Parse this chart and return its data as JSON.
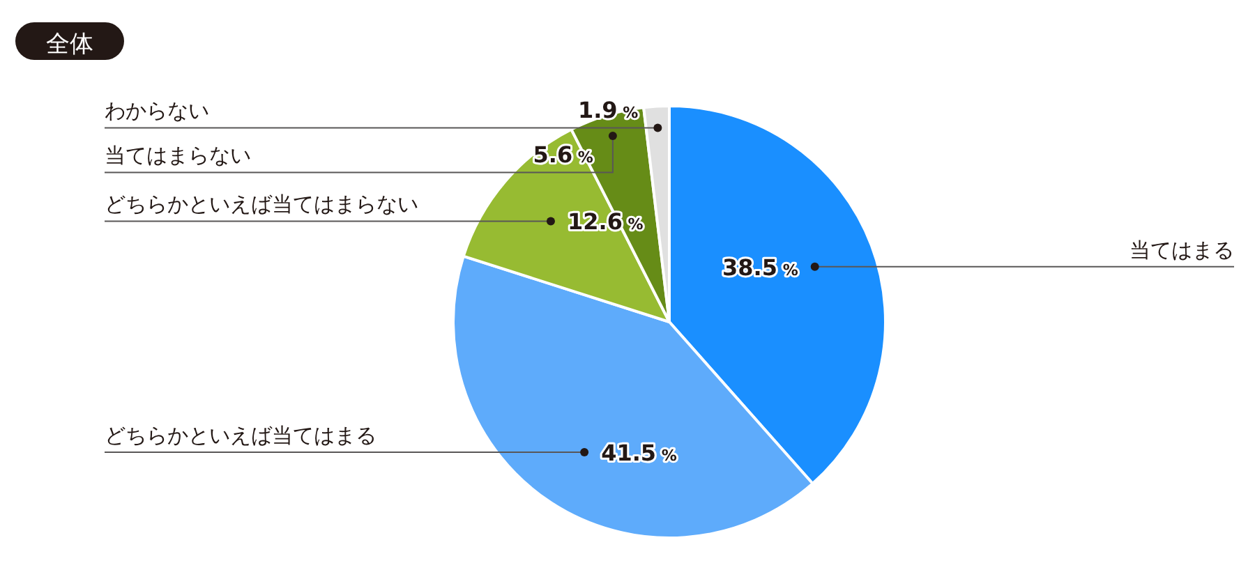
{
  "chart_data": {
    "type": "pie",
    "title": "全体",
    "categories": [
      "当てはまる",
      "どちらかといえば当てはまる",
      "どちらかといえば当てはまらない",
      "当てはまらない",
      "わからない"
    ],
    "values": [
      38.5,
      41.5,
      12.6,
      5.6,
      1.9
    ],
    "colors": [
      "#1a8fff",
      "#5eabfb",
      "#97bb32",
      "#668c17",
      "#e0e0e0"
    ],
    "value_labels": [
      "38.5 %",
      "41.5 %",
      "12.6 %",
      "5.6 %",
      "1.9 %"
    ]
  }
}
